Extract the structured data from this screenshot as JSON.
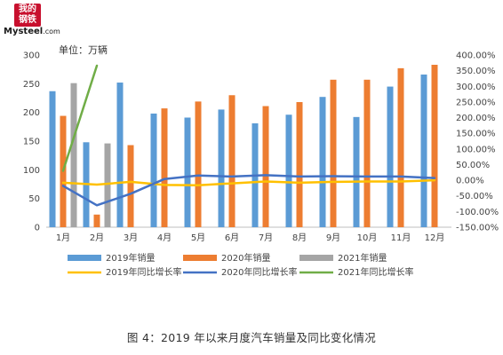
{
  "logo": {
    "badge_text": "我的钢铁",
    "name": "Mysteel",
    "suffix": ".com"
  },
  "unit_label": "单位：万辆",
  "caption": "图 4：2019 年以来月度汽车销量及同比变化情况",
  "colors": {
    "s2019_bar": "#5b9bd5",
    "s2020_bar": "#ed7d31",
    "s2021_bar": "#a5a5a5",
    "s2019_line": "#ffc000",
    "s2020_line": "#4472c4",
    "s2021_line": "#70ad47"
  },
  "chart_data": {
    "type": "bar+line",
    "categories": [
      "1月",
      "2月",
      "3月",
      "4月",
      "5月",
      "6月",
      "7月",
      "8月",
      "9月",
      "10月",
      "11月",
      "12月"
    ],
    "y_left": {
      "min": 0,
      "max": 300,
      "step": 50,
      "ticks": [
        "0",
        "50",
        "100",
        "150",
        "200",
        "250",
        "300"
      ]
    },
    "y_right": {
      "min": -150,
      "max": 400,
      "step": 50,
      "ticks": [
        "-150.00%",
        "-100.00%",
        "-50.00%",
        "0.00%",
        "50.00%",
        "100.00%",
        "150.00%",
        "200.00%",
        "250.00%",
        "300.00%",
        "350.00%",
        "400.00%"
      ]
    },
    "bar_series": [
      {
        "name": "2019年销量",
        "values": [
          237,
          148,
          252,
          198,
          191,
          205,
          181,
          196,
          227,
          192,
          245,
          266
        ]
      },
      {
        "name": "2020年销量",
        "values": [
          194,
          22,
          143,
          207,
          219,
          230,
          211,
          218,
          257,
          257,
          277,
          283
        ]
      },
      {
        "name": "2021年销量",
        "values": [
          251,
          146,
          null,
          null,
          null,
          null,
          null,
          null,
          null,
          null,
          null,
          null
        ]
      }
    ],
    "line_series": [
      {
        "name": "2019年同比增长率",
        "values": [
          -8,
          -14,
          -5,
          -15,
          -16,
          -10,
          -4,
          -8,
          -5,
          -4,
          -4,
          0
        ]
      },
      {
        "name": "2020年同比增长率",
        "values": [
          -18,
          -80,
          -43,
          4,
          15,
          12,
          16,
          12,
          13,
          12,
          12,
          7
        ]
      },
      {
        "name": "2021年同比增长率",
        "values": [
          30,
          366,
          null,
          null,
          null,
          null,
          null,
          null,
          null,
          null,
          null,
          null
        ]
      }
    ],
    "grid": false,
    "legend_position": "bottom"
  }
}
